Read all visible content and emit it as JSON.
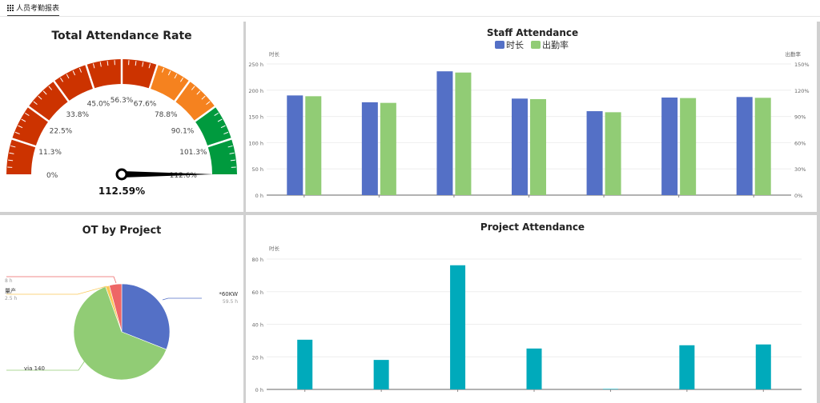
{
  "header": {
    "tab_label": "人员考勤报表",
    "tab_icon": "grid-icon"
  },
  "chart_data": [
    {
      "type": "gauge",
      "title": "Total Attendance Rate",
      "min": 0,
      "max": 112.6,
      "tick_labels": [
        "0%",
        "11.3%",
        "22.5%",
        "33.8%",
        "45.0%",
        "56.3%",
        "67.6%",
        "78.8%",
        "90.1%",
        "101.3%",
        "112.6%"
      ],
      "bands": [
        {
          "to": 67.6,
          "color": "#cc3300"
        },
        {
          "to": 90.1,
          "color": "#f5821f"
        },
        {
          "to": 112.6,
          "color": "#009a3e"
        }
      ],
      "value": 112.59,
      "value_label": "112.59%"
    },
    {
      "type": "bar",
      "title": "Staff Attendance",
      "legend_position": "top",
      "ylabel_left": "时长",
      "ylabel_right": "出勤率",
      "y_ticks_left": [
        "0 h",
        "50 h",
        "100 h",
        "150 h",
        "200 h",
        "250 h"
      ],
      "ylim_left": [
        0,
        250
      ],
      "y_ticks_right": [
        "0%",
        "30%",
        "60%",
        "90%",
        "120%",
        "150%"
      ],
      "ylim_right": [
        0,
        150
      ],
      "categories": [
        "",
        "",
        "",
        "",
        "",
        "",
        ""
      ],
      "series": [
        {
          "name": "时长",
          "color": "#5470c6",
          "axis": "left",
          "values": [
            190,
            177,
            236,
            184,
            160,
            186,
            187
          ]
        },
        {
          "name": "出勤率",
          "color": "#91cc75",
          "axis": "right",
          "values": [
            113.1,
            105.5,
            140.2,
            109.8,
            94.8,
            111.0,
            111.3
          ]
        }
      ]
    },
    {
      "type": "pie",
      "title": "OT by Project",
      "slices": [
        {
          "label": "*60KW",
          "value_label": "59.5 h",
          "value": 59.5,
          "color": "#5470c6"
        },
        {
          "label": "via 140",
          "value_label": "",
          "value": 122,
          "color": "#91cc75"
        },
        {
          "label": "量产",
          "value_label": "2.5 h",
          "value": 2.5,
          "color": "#fac858"
        },
        {
          "label": "",
          "value_label": "8 h",
          "value": 8,
          "color": "#ee6666"
        }
      ]
    },
    {
      "type": "bar",
      "title": "Project Attendance",
      "ylabel": "时长",
      "y_ticks": [
        "0 h",
        "20 h",
        "40 h",
        "60 h",
        "80 h"
      ],
      "ylim": [
        0,
        80
      ],
      "categories": [
        "",
        "",
        "",
        "",
        "",
        "",
        ""
      ],
      "series": [
        {
          "color": "#00aabb",
          "values": [
            30.5,
            18.1,
            76.2,
            25.1,
            0.3,
            27.1,
            27.6
          ]
        }
      ]
    }
  ]
}
